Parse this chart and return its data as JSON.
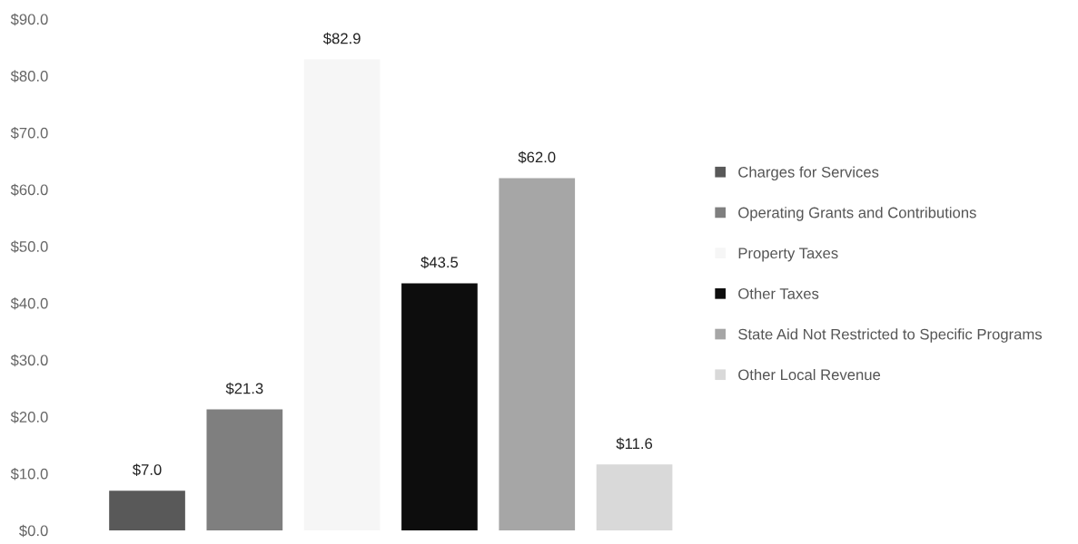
{
  "chart_data": {
    "type": "bar",
    "categories": [
      null
    ],
    "series": [
      {
        "name": "Charges for Services",
        "color": "#595959",
        "values": [
          7.0
        ],
        "value_labels": [
          "$7.0"
        ]
      },
      {
        "name": "Operating Grants and Contributions",
        "color": "#7f7f7f",
        "values": [
          21.3
        ],
        "value_labels": [
          "$21.3"
        ]
      },
      {
        "name": "Property Taxes",
        "color": "#f6f6f6",
        "values": [
          82.9
        ],
        "value_labels": [
          "$82.9"
        ]
      },
      {
        "name": "Other Taxes",
        "color": "#0d0d0d",
        "values": [
          43.5
        ],
        "value_labels": [
          "$43.5"
        ]
      },
      {
        "name": "State Aid Not Restricted to Specific Programs",
        "color": "#a6a6a6",
        "values": [
          62.0
        ],
        "value_labels": [
          "$62.0"
        ]
      },
      {
        "name": "Other Local Revenue",
        "color": "#d9d9d9",
        "values": [
          11.6
        ],
        "value_labels": [
          "$11.6"
        ]
      }
    ],
    "ylim": [
      0,
      90
    ],
    "yticks": [
      {
        "value": 0,
        "label": "$0.0"
      },
      {
        "value": 10,
        "label": "$10.0"
      },
      {
        "value": 20,
        "label": "$20.0"
      },
      {
        "value": 30,
        "label": "$30.0"
      },
      {
        "value": 40,
        "label": "$40.0"
      },
      {
        "value": 50,
        "label": "$50.0"
      },
      {
        "value": 60,
        "label": "$60.0"
      },
      {
        "value": 70,
        "label": "$70.0"
      },
      {
        "value": 80,
        "label": "$80.0"
      },
      {
        "value": 90,
        "label": "$90.0"
      }
    ],
    "tick_labels": "y",
    "grid": false,
    "legend": "right"
  }
}
